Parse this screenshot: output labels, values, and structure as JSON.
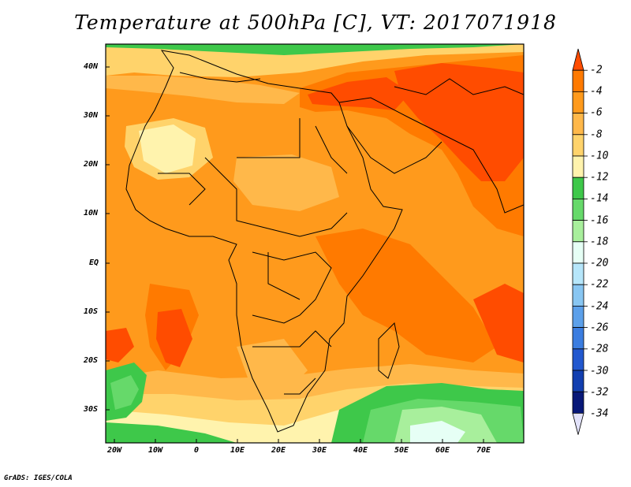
{
  "title": "Temperature at 500hPa [C], VT: 2017071918",
  "credit": "GrADS: IGES/COLA",
  "map": {
    "region": "Africa, Arabia and South Asia",
    "lat_labels": [
      "40N",
      "30N",
      "20N",
      "10N",
      "EQ",
      "10S",
      "20S",
      "30S"
    ],
    "lon_labels": [
      "20W",
      "10W",
      "0",
      "10E",
      "20E",
      "30E",
      "40E",
      "50E",
      "60E",
      "70E"
    ],
    "overlays": [
      "country-boundaries",
      "coastlines"
    ]
  },
  "colorbar": {
    "labels": [
      "-2",
      "-4",
      "-6",
      "-8",
      "-10",
      "-12",
      "-14",
      "-16",
      "-18",
      "-20",
      "-22",
      "-24",
      "-26",
      "-28",
      "-30",
      "-32",
      "-34"
    ],
    "colors": [
      "#ff4c00",
      "#ff7a00",
      "#ff9a1c",
      "#ffb84a",
      "#ffd36b",
      "#fff3ad",
      "#3ec84a",
      "#66d96a",
      "#a8ef9c",
      "#e6fff5",
      "#b6e6fa",
      "#88c6f2",
      "#5ca0ea",
      "#3b7de0",
      "#2258cf",
      "#123fb0",
      "#081878",
      "#e2e2fa"
    ],
    "extend": "both"
  }
}
